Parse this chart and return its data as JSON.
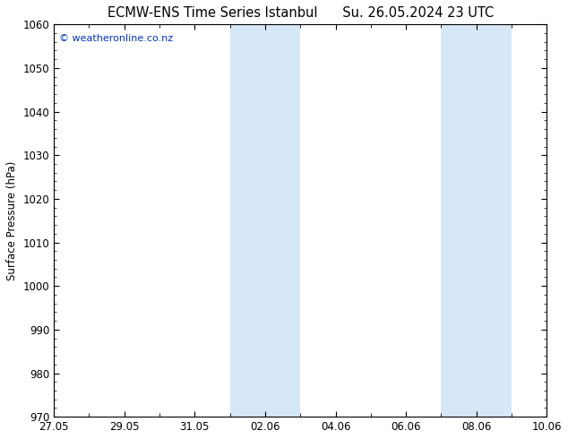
{
  "title_left": "ECMW-ENS Time Series Istanbul",
  "title_right": "Su. 26.05.2024 23 UTC",
  "ylabel": "Surface Pressure (hPa)",
  "background_color": "#ffffff",
  "plot_bg_color": "#ffffff",
  "ylim": [
    970,
    1060
  ],
  "yticks": [
    970,
    980,
    990,
    1000,
    1010,
    1020,
    1030,
    1040,
    1050,
    1060
  ],
  "xtick_labels": [
    "27.05",
    "29.05",
    "31.05",
    "02.06",
    "04.06",
    "06.06",
    "08.06",
    "10.06"
  ],
  "xtick_positions": [
    0,
    2,
    4,
    6,
    8,
    10,
    12,
    14
  ],
  "shaded_bands": [
    {
      "xmin": 5.0,
      "xmax": 7.0
    },
    {
      "xmin": 11.0,
      "xmax": 13.0
    }
  ],
  "shaded_color": "#d6e8f7",
  "watermark_text": "© weatheronline.co.nz",
  "watermark_color": "#0033cc",
  "watermark_fontsize": 8,
  "title_fontsize": 10.5,
  "tick_fontsize": 8.5,
  "ylabel_fontsize": 8.5,
  "axis_color": "#000000",
  "tick_color": "#000000",
  "xlim": [
    0,
    14
  ],
  "title_color": "#000000"
}
